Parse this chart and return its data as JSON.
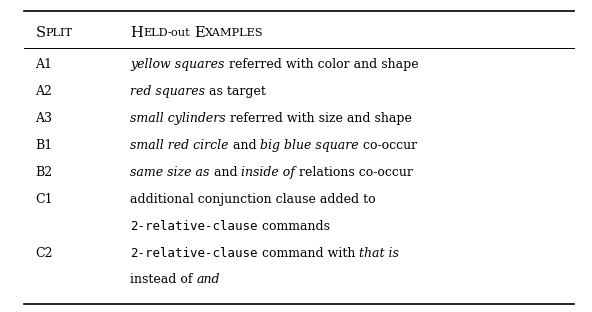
{
  "header_col1": "SPLIT",
  "header_col2": "HELD-OUT EXAMPLES",
  "rows": [
    {
      "split": "A1",
      "line1": [
        {
          "text": "yellow squares",
          "style": "italic"
        },
        {
          "text": " referred with color and shape",
          "style": "normal"
        }
      ],
      "line2": []
    },
    {
      "split": "A2",
      "line1": [
        {
          "text": "red squares",
          "style": "italic"
        },
        {
          "text": " as target",
          "style": "normal"
        }
      ],
      "line2": []
    },
    {
      "split": "A3",
      "line1": [
        {
          "text": "small cylinders",
          "style": "italic"
        },
        {
          "text": " referred with size and shape",
          "style": "normal"
        }
      ],
      "line2": []
    },
    {
      "split": "B1",
      "line1": [
        {
          "text": "small red circle",
          "style": "italic"
        },
        {
          "text": " and ",
          "style": "normal"
        },
        {
          "text": "big blue square",
          "style": "italic"
        },
        {
          "text": " co-occur",
          "style": "normal"
        }
      ],
      "line2": []
    },
    {
      "split": "B2",
      "line1": [
        {
          "text": "same size as",
          "style": "italic"
        },
        {
          "text": " and ",
          "style": "normal"
        },
        {
          "text": "inside of",
          "style": "italic"
        },
        {
          "text": " relations co-occur",
          "style": "normal"
        }
      ],
      "line2": []
    },
    {
      "split": "C1",
      "line1": [
        {
          "text": "additional conjunction clause added to",
          "style": "normal"
        }
      ],
      "line2": [
        {
          "text": "2-relative-clause",
          "style": "mono"
        },
        {
          "text": " commands",
          "style": "normal"
        }
      ]
    },
    {
      "split": "C2",
      "line1": [
        {
          "text": "2-relative-clause",
          "style": "mono"
        },
        {
          "text": " command with ",
          "style": "normal"
        },
        {
          "text": "that is",
          "style": "italic"
        }
      ],
      "line2": [
        {
          "text": "instead of ",
          "style": "normal"
        },
        {
          "text": "and",
          "style": "italic"
        }
      ]
    }
  ],
  "bg_color": "#ffffff",
  "text_color": "#000000",
  "font_size": 9.0,
  "fig_width": 5.92,
  "fig_height": 3.12,
  "dpi": 100
}
